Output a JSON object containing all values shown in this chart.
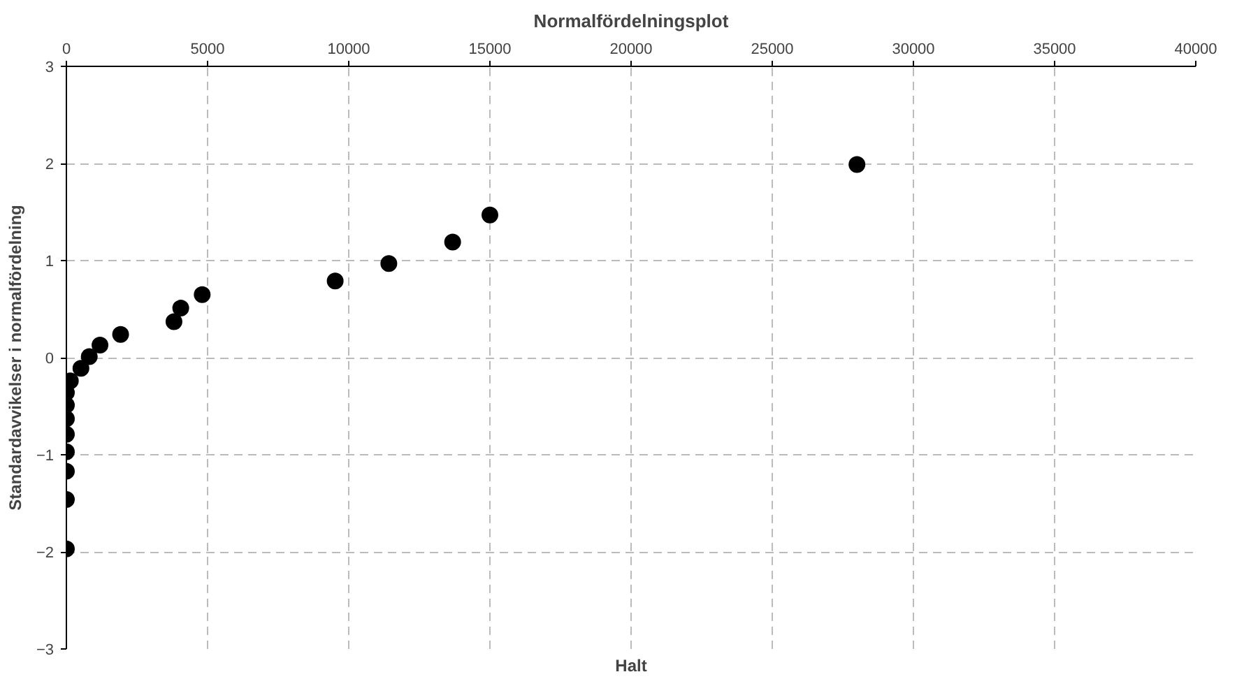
{
  "chart_data": {
    "type": "scatter",
    "title": "Normalfördelningsplot",
    "xlabel": "Halt",
    "ylabel": "Standardavvikelser i normalfördelning",
    "x": [
      0,
      0,
      0,
      0,
      0,
      0,
      0,
      0,
      140,
      515,
      810,
      1190,
      1920,
      3810,
      4050,
      4810,
      9520,
      11420,
      13680,
      15000,
      28000
    ],
    "series": [
      {
        "color": "#000000",
        "values": [
          -1.97,
          -1.46,
          -1.17,
          -0.97,
          -0.79,
          -0.63,
          -0.49,
          -0.36,
          -0.24,
          -0.11,
          0.01,
          0.13,
          0.24,
          0.37,
          0.51,
          0.65,
          0.79,
          0.97,
          1.19,
          1.47,
          1.99
        ]
      }
    ],
    "xlim": [
      0,
      40000
    ],
    "xticks": [
      0,
      5000,
      10000,
      15000,
      20000,
      25000,
      30000,
      35000,
      40000
    ],
    "ylim": [
      -3,
      3
    ],
    "yticks": [
      -3,
      -2,
      -1,
      0,
      1,
      2,
      3
    ],
    "grid": true,
    "marker": "circle"
  }
}
